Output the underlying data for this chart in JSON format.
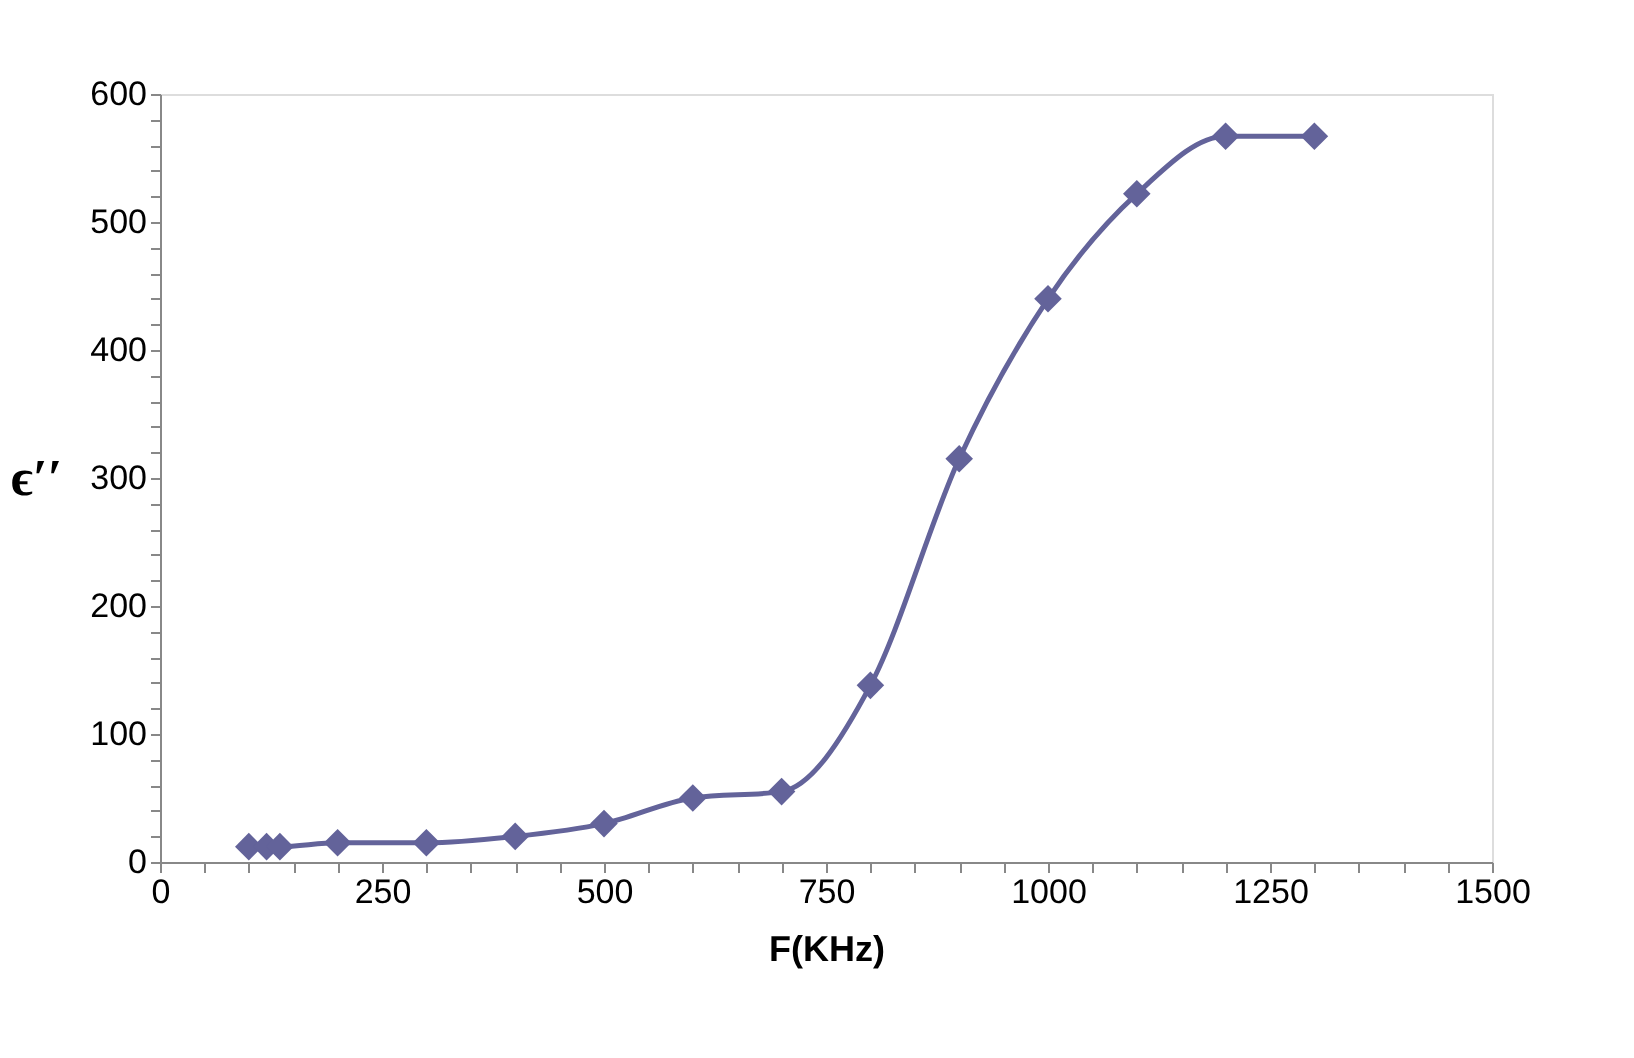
{
  "chart_data": {
    "type": "line",
    "xlabel": "F(KHz)",
    "ylabel": "ϵ′′",
    "x": [
      100,
      120,
      135,
      200,
      300,
      400,
      500,
      600,
      700,
      800,
      900,
      1000,
      1100,
      1200,
      1300
    ],
    "series": [
      {
        "color": "#63639a",
        "values": [
          12,
          12,
          12,
          15,
          15,
          20,
          30,
          50,
          55,
          138,
          315,
          440,
          522,
          567,
          567
        ]
      }
    ],
    "xlim": [
      0,
      1500
    ],
    "xticks": [
      0,
      {
        "value": 50,
        "label": null
      },
      {
        "value": 100,
        "label": null
      },
      {
        "value": 150,
        "label": null
      },
      {
        "value": 200,
        "label": null
      },
      250,
      {
        "value": 300,
        "label": null
      },
      {
        "value": 350,
        "label": null
      },
      {
        "value": 400,
        "label": null
      },
      {
        "value": 450,
        "label": null
      },
      500,
      {
        "value": 550,
        "label": null
      },
      {
        "value": 600,
        "label": null
      },
      {
        "value": 650,
        "label": null
      },
      {
        "value": 700,
        "label": null
      },
      750,
      {
        "value": 800,
        "label": null
      },
      {
        "value": 850,
        "label": null
      },
      {
        "value": 900,
        "label": null
      },
      {
        "value": 950,
        "label": null
      },
      1000,
      {
        "value": 1050,
        "label": null
      },
      {
        "value": 1100,
        "label": null
      },
      {
        "value": 1150,
        "label": null
      },
      {
        "value": 1200,
        "label": null
      },
      1250,
      {
        "value": 1300,
        "label": null
      },
      {
        "value": 1350,
        "label": null
      },
      {
        "value": 1400,
        "label": null
      },
      {
        "value": 1450,
        "label": null
      },
      1500
    ],
    "ylim": [
      0,
      600
    ],
    "yticks": [
      0,
      {
        "value": 20,
        "label": null
      },
      {
        "value": 40,
        "label": null
      },
      {
        "value": 60,
        "label": null
      },
      {
        "value": 80,
        "label": null
      },
      100,
      {
        "value": 120,
        "label": null
      },
      {
        "value": 140,
        "label": null
      },
      {
        "value": 160,
        "label": null
      },
      {
        "value": 180,
        "label": null
      },
      200,
      {
        "value": 220,
        "label": null
      },
      {
        "value": 240,
        "label": null
      },
      {
        "value": 260,
        "label": null
      },
      {
        "value": 280,
        "label": null
      },
      300,
      {
        "value": 320,
        "label": null
      },
      {
        "value": 340,
        "label": null
      },
      {
        "value": 360,
        "label": null
      },
      {
        "value": 380,
        "label": null
      },
      400,
      {
        "value": 420,
        "label": null
      },
      {
        "value": 440,
        "label": null
      },
      {
        "value": 460,
        "label": null
      },
      {
        "value": 480,
        "label": null
      },
      500,
      {
        "value": 520,
        "label": null
      },
      {
        "value": 540,
        "label": null
      },
      {
        "value": 560,
        "label": null
      },
      {
        "value": 580,
        "label": null
      },
      600
    ],
    "grid": false,
    "marker": "diamond",
    "line_style": "solid"
  }
}
